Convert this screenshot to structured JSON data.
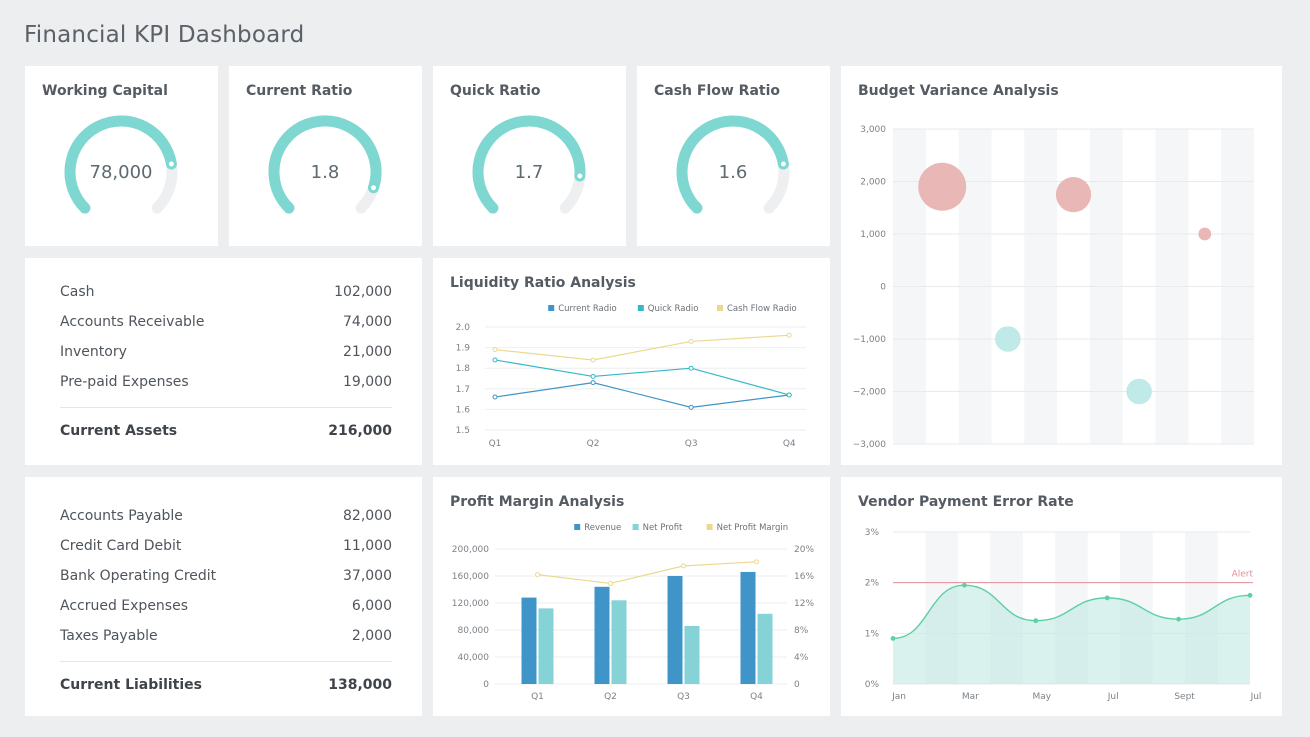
{
  "title": "Financial KPI Dashboard",
  "colors": {
    "teal": "#7fd7d2",
    "blue": "#3f94c8",
    "lightblue": "#85d3d6",
    "yellow": "#f0dd96",
    "pink": "#eab7b7",
    "green": "#5fcfa6",
    "alert": "#e08f97"
  },
  "kpis": [
    {
      "label": "Working Capital",
      "value": "78,000",
      "fraction": 0.8
    },
    {
      "label": "Current Ratio",
      "value": "1.8",
      "fraction": 0.9
    },
    {
      "label": "Quick Ratio",
      "value": "1.7",
      "fraction": 0.85
    },
    {
      "label": "Cash Flow Ratio",
      "value": "1.6",
      "fraction": 0.8
    }
  ],
  "assets": {
    "rows": [
      {
        "label": "Cash",
        "value": "102,000"
      },
      {
        "label": "Accounts Receivable",
        "value": "74,000"
      },
      {
        "label": "Inventory",
        "value": "21,000"
      },
      {
        "label": "Pre-paid Expenses",
        "value": "19,000"
      }
    ],
    "total_label": "Current Assets",
    "total_value": "216,000"
  },
  "liabilities": {
    "rows": [
      {
        "label": "Accounts Payable",
        "value": "82,000"
      },
      {
        "label": "Credit Card Debit",
        "value": "11,000"
      },
      {
        "label": "Bank Operating Credit",
        "value": "37,000"
      },
      {
        "label": "Accrued Expenses",
        "value": "6,000"
      },
      {
        "label": "Taxes Payable",
        "value": "2,000"
      }
    ],
    "total_label": "Current Liabilities",
    "total_value": "138,000"
  },
  "chart_data": [
    {
      "id": "liquidity",
      "type": "line",
      "title": "Liquidity Ratio Analysis",
      "categories": [
        "Q1",
        "Q2",
        "Q3",
        "Q4"
      ],
      "ylim": [
        1.5,
        2.0
      ],
      "yticks": [
        "2.0",
        "1.9",
        "1.8",
        "1.7",
        "1.6",
        "1.5"
      ],
      "legend_position": "top-right",
      "series": [
        {
          "name": "Current Radio",
          "color": "#3f94c8",
          "values": [
            1.66,
            1.73,
            1.61,
            1.67
          ]
        },
        {
          "name": "Quick Radio",
          "color": "#37b7c4",
          "values": [
            1.84,
            1.76,
            1.8,
            1.67
          ]
        },
        {
          "name": "Cash Flow Radio",
          "color": "#ecd98f",
          "values": [
            1.89,
            1.84,
            1.93,
            1.96
          ]
        }
      ]
    },
    {
      "id": "profit",
      "type": "bar",
      "title": "Profit Margin Analysis",
      "categories": [
        "Q1",
        "Q2",
        "Q3",
        "Q4"
      ],
      "ylim": [
        0,
        200000
      ],
      "yticks": [
        "200,000",
        "160,000",
        "120,000",
        "80,000",
        "40,000",
        "0"
      ],
      "y2lim": [
        0,
        20
      ],
      "y2ticks": [
        "20%",
        "16%",
        "12%",
        "8%",
        "4%",
        "0"
      ],
      "legend_position": "top-right",
      "series": [
        {
          "name": "Revenue",
          "color": "#3f94c8",
          "values": [
            128000,
            144000,
            160000,
            166000
          ]
        },
        {
          "name": "Net Profit",
          "color": "#85d3d6",
          "values": [
            112000,
            124000,
            86000,
            104000
          ]
        },
        {
          "name": "Net Profit Margin",
          "color": "#ecd98f",
          "axis": "right",
          "values": [
            16.2,
            14.9,
            17.5,
            18.1
          ]
        }
      ]
    },
    {
      "id": "budget",
      "type": "scatter",
      "title": "Budget Variance Analysis",
      "ylim": [
        -3000,
        3000
      ],
      "yticks": [
        "3,000",
        "2,000",
        "1,000",
        "0",
        "−1,000",
        "−2,000",
        "−3,000"
      ],
      "columns": 11,
      "points": [
        {
          "x": 1.5,
          "y": 1900,
          "size": 3.0,
          "color": "#eab7b7"
        },
        {
          "x": 3.5,
          "y": -1000,
          "size": 1.6,
          "color": "#bfeae7"
        },
        {
          "x": 5.5,
          "y": 1750,
          "size": 2.2,
          "color": "#eab7b7"
        },
        {
          "x": 7.5,
          "y": -2000,
          "size": 1.6,
          "color": "#bfeae7"
        },
        {
          "x": 9.5,
          "y": 1000,
          "size": 0.8,
          "color": "#eab7b7"
        }
      ]
    },
    {
      "id": "vendor",
      "type": "area",
      "title": "Vendor Payment Error Rate",
      "categories": [
        "Jan",
        "Mar",
        "May",
        "Jul",
        "Sept",
        "Jul"
      ],
      "ylim": [
        0,
        3
      ],
      "yticks": [
        "3%",
        "2%",
        "1%",
        "0%"
      ],
      "alert": {
        "label": "Alert",
        "value": 2
      },
      "values": [
        0.9,
        1.95,
        1.25,
        1.7,
        1.28,
        1.75
      ]
    }
  ]
}
